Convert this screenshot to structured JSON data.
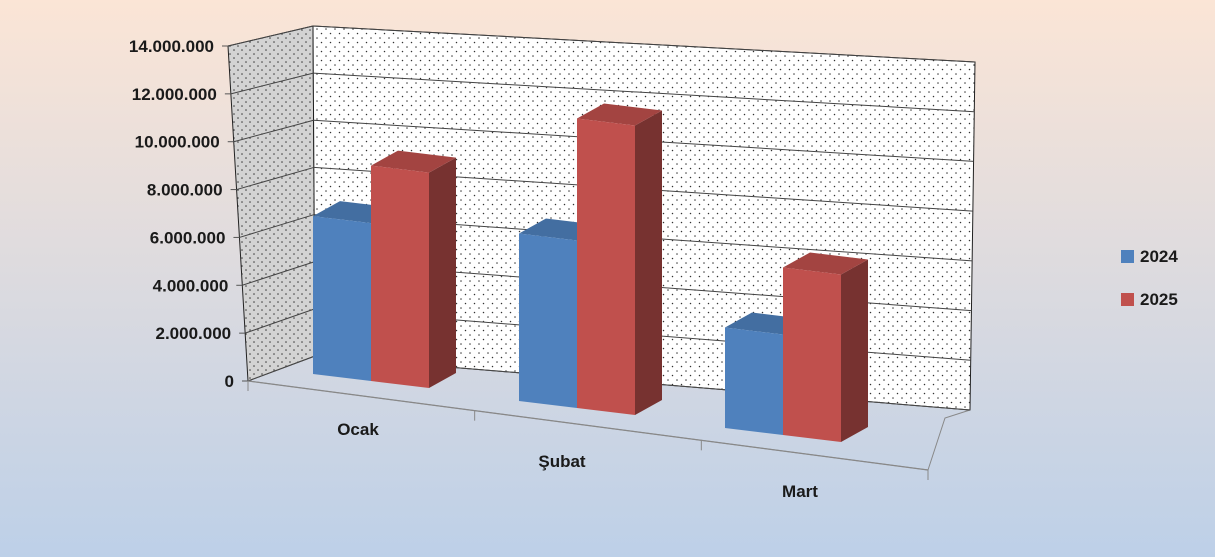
{
  "chart_data": {
    "type": "bar",
    "style": "3d-clustered-column",
    "categories": [
      "Ocak",
      "Şubat",
      "Mart"
    ],
    "series": [
      {
        "name": "2024",
        "values": [
          6600000,
          7000000,
          4200000
        ],
        "color": "#4F81BD"
      },
      {
        "name": "2025",
        "values": [
          9000000,
          12100000,
          7000000
        ],
        "color": "#C0504D"
      }
    ],
    "y_ticks": [
      "0",
      "2.000.000",
      "4.000.000",
      "6.000.000",
      "8.000.000",
      "10.000.000",
      "12.000.000",
      "14.000.000"
    ],
    "ylim": [
      0,
      14000000
    ],
    "grid": true,
    "legend_position": "right",
    "background_gradient": [
      "#FBE5D6",
      "#BDD0E8"
    ]
  }
}
